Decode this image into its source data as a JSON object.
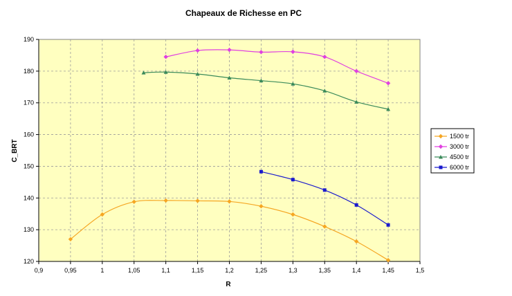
{
  "chart_data": {
    "type": "line",
    "title": "Chapeaux de Richesse en PC",
    "xlabel": "R",
    "ylabel": "C_BRT",
    "xlim": [
      0.9,
      1.5
    ],
    "ylim": [
      120,
      190
    ],
    "x_ticks": [
      "0,9",
      "0,95",
      "1",
      "1,05",
      "1,1",
      "1,15",
      "1,2",
      "1,25",
      "1,3",
      "1,35",
      "1,4",
      "1,45",
      "1,5"
    ],
    "y_ticks": [
      "120",
      "130",
      "140",
      "150",
      "160",
      "170",
      "180",
      "190"
    ],
    "grid": true,
    "grid_style": "dashed",
    "plot_background": "#ffffc0",
    "legend_position": "right",
    "series": [
      {
        "name": "1500 tr",
        "color": "#f5a623",
        "marker": "diamond",
        "points": [
          [
            0.95,
            127.0
          ],
          [
            1.0,
            134.8
          ],
          [
            1.05,
            138.8
          ],
          [
            1.1,
            139.2
          ],
          [
            1.15,
            139.1
          ],
          [
            1.2,
            138.9
          ],
          [
            1.25,
            137.4
          ],
          [
            1.3,
            134.8
          ],
          [
            1.35,
            131.0
          ],
          [
            1.4,
            126.3
          ],
          [
            1.45,
            120.4
          ]
        ]
      },
      {
        "name": "3000 tr",
        "color": "#e040e0",
        "marker": "diamond",
        "points": [
          [
            1.1,
            184.5
          ],
          [
            1.15,
            186.5
          ],
          [
            1.2,
            186.7
          ],
          [
            1.25,
            186.0
          ],
          [
            1.3,
            186.1
          ],
          [
            1.35,
            184.5
          ],
          [
            1.4,
            180.0
          ],
          [
            1.45,
            176.2
          ]
        ]
      },
      {
        "name": "4500 tr",
        "color": "#3a8a5a",
        "marker": "triangle",
        "points": [
          [
            1.065,
            179.5
          ],
          [
            1.1,
            179.7
          ],
          [
            1.15,
            179.1
          ],
          [
            1.2,
            177.9
          ],
          [
            1.25,
            177.0
          ],
          [
            1.3,
            176.0
          ],
          [
            1.35,
            173.8
          ],
          [
            1.4,
            170.3
          ],
          [
            1.45,
            168.0
          ]
        ]
      },
      {
        "name": "6000 tr",
        "color": "#1a1acd",
        "marker": "square",
        "points": [
          [
            1.25,
            148.3
          ],
          [
            1.3,
            145.8
          ],
          [
            1.35,
            142.5
          ],
          [
            1.4,
            137.8
          ],
          [
            1.45,
            131.5
          ]
        ]
      }
    ]
  }
}
